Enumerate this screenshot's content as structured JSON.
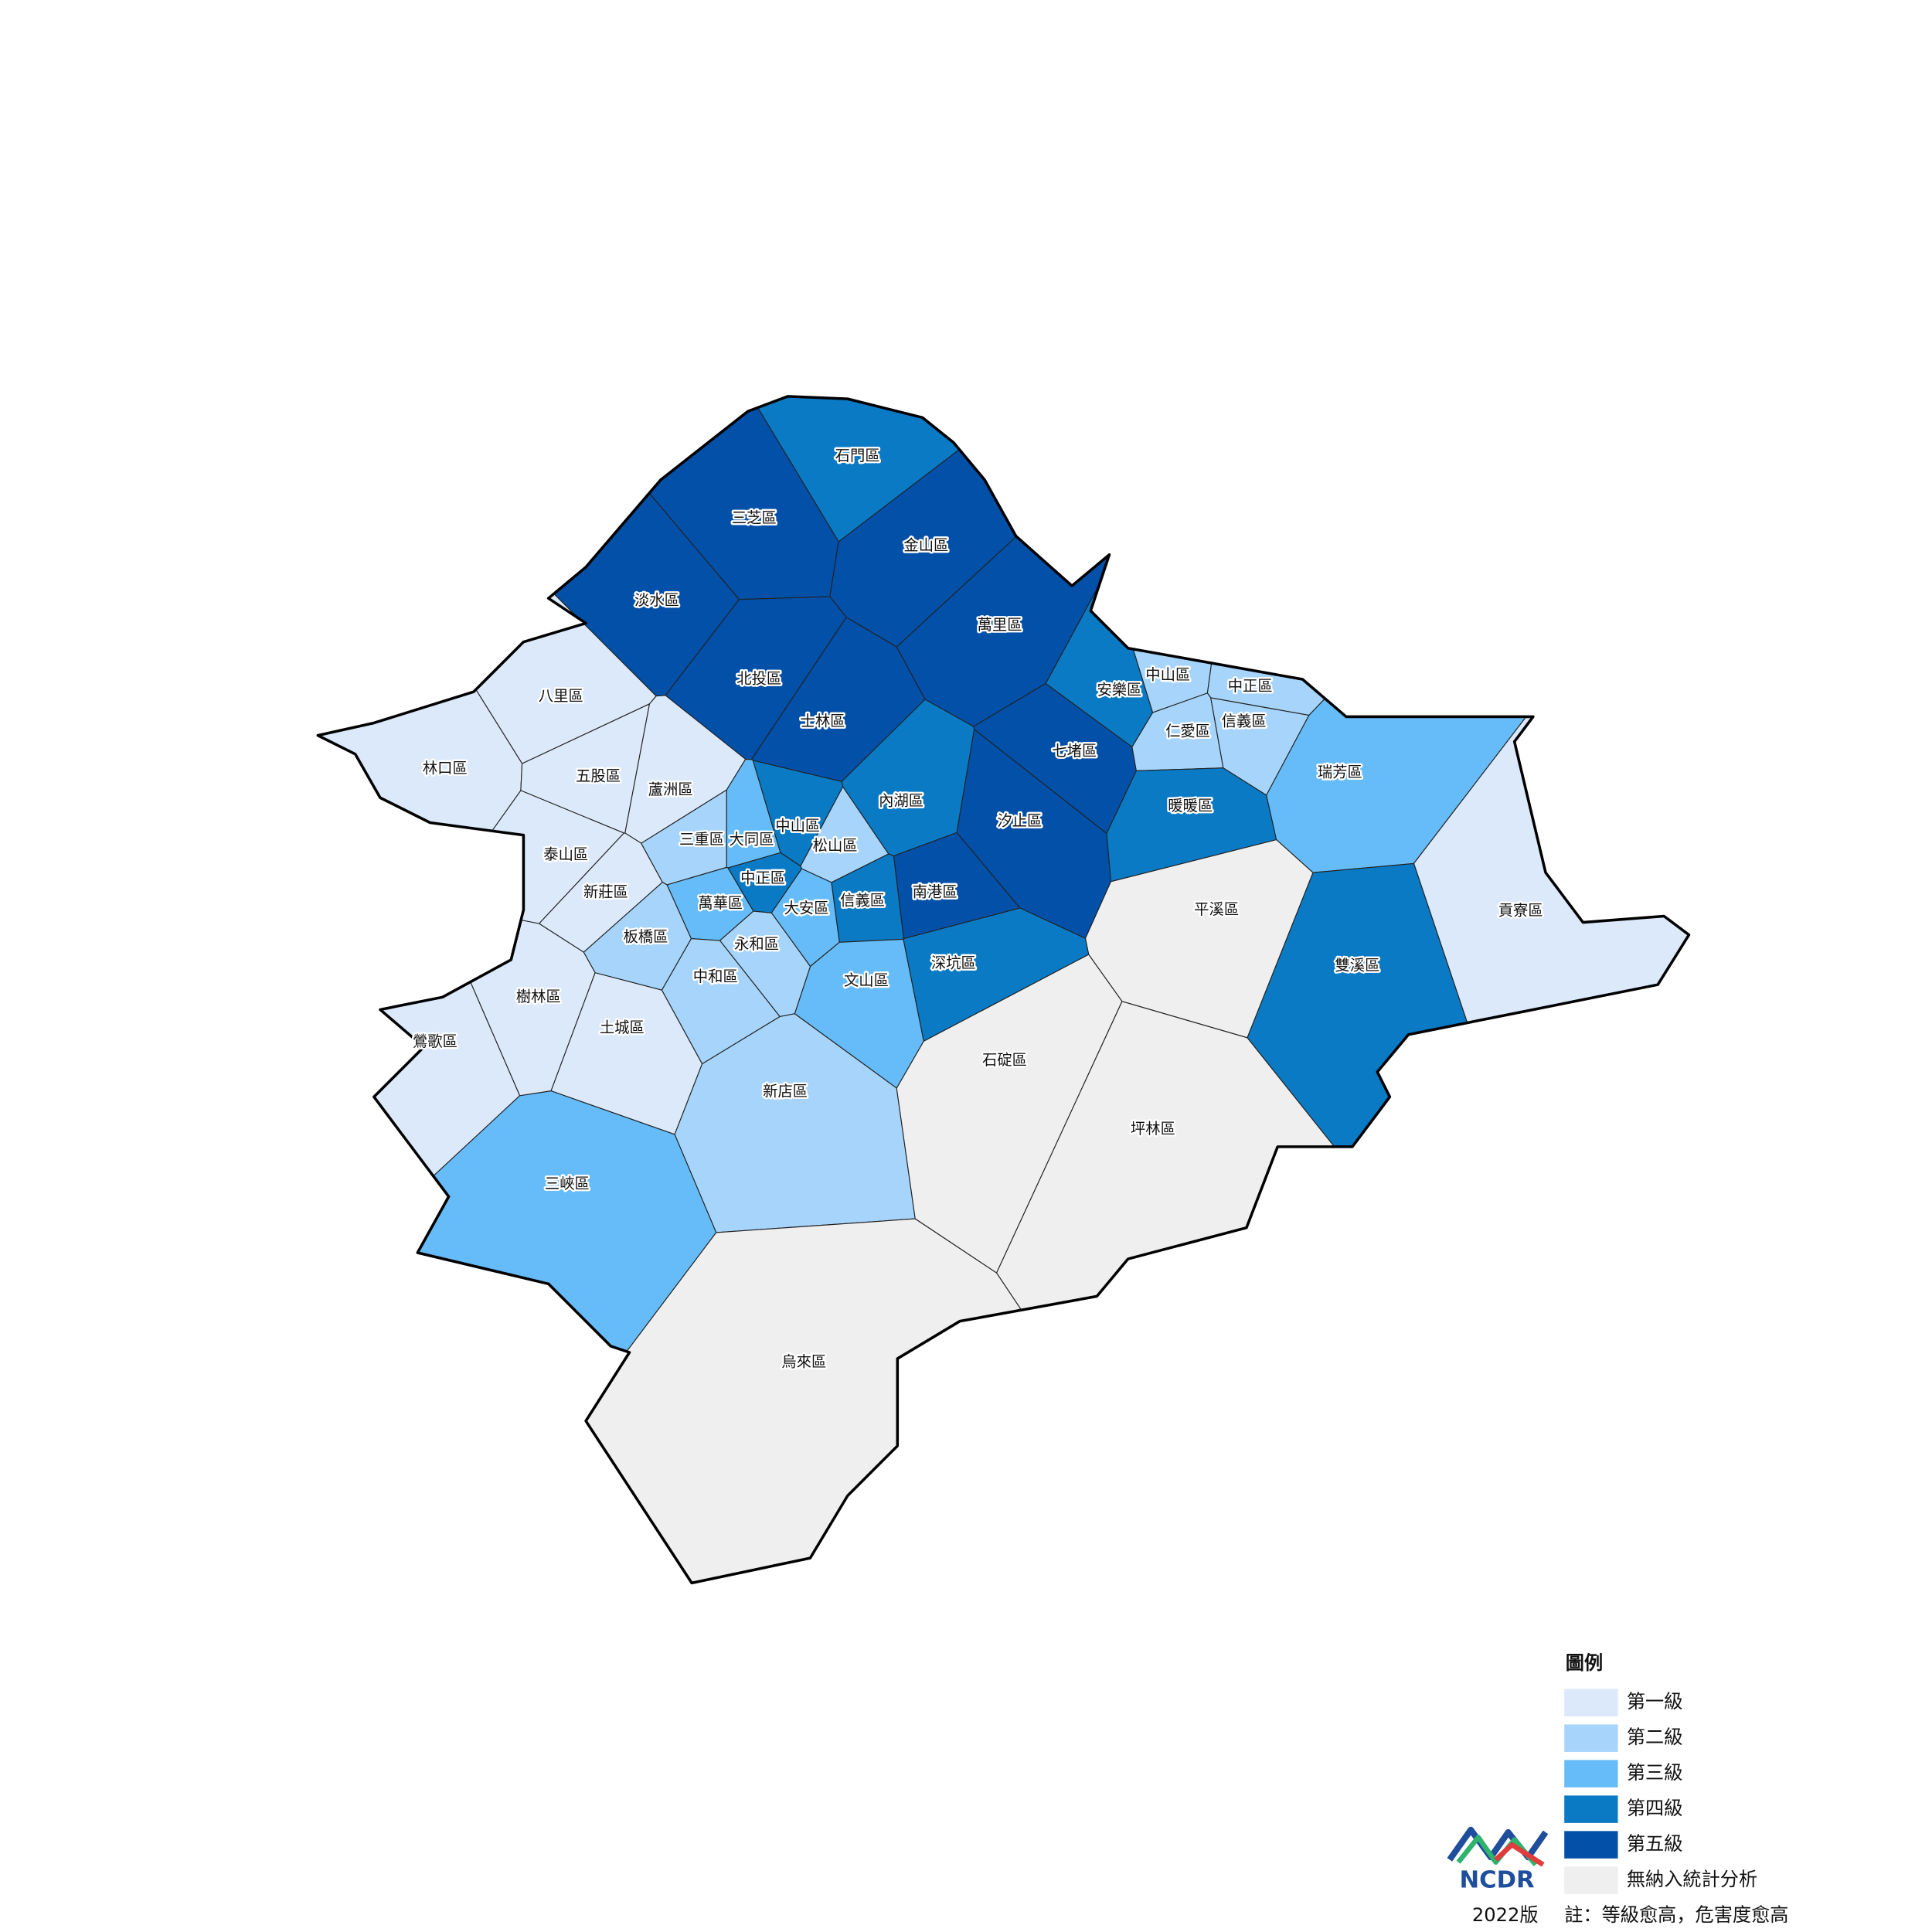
{
  "map": {
    "districts": [
      {
        "name": "石門區",
        "class": 3
      },
      {
        "name": "三芝區",
        "class": 4
      },
      {
        "name": "金山區",
        "class": 4
      },
      {
        "name": "淡水區",
        "class": 4
      },
      {
        "name": "萬里區",
        "class": 4
      },
      {
        "name": "北投區",
        "class": 4
      },
      {
        "name": "士林區",
        "class": 4
      },
      {
        "name": "八里區",
        "class": 0
      },
      {
        "name": "林口區",
        "class": 0
      },
      {
        "name": "五股區",
        "class": 0
      },
      {
        "name": "蘆洲區",
        "class": 0
      },
      {
        "name": "泰山區",
        "class": 0
      },
      {
        "name": "新莊區",
        "class": 0
      },
      {
        "name": "三重區",
        "class": 1
      },
      {
        "name": "大同區",
        "class": 2
      },
      {
        "name": "中山區",
        "class": 3
      },
      {
        "name": "松山區",
        "class": 1
      },
      {
        "name": "內湖區",
        "class": 3
      },
      {
        "name": "中正區",
        "class": 3
      },
      {
        "name": "萬華區",
        "class": 2
      },
      {
        "name": "大安區",
        "class": 2
      },
      {
        "name": "信義區",
        "class": 3
      },
      {
        "name": "南港區",
        "class": 4
      },
      {
        "name": "汐止區",
        "class": 4
      },
      {
        "name": "七堵區",
        "class": 4
      },
      {
        "name": "安樂區",
        "class": 3
      },
      {
        "name": "中山區",
        "class": 1
      },
      {
        "name": "中正區",
        "class": 1
      },
      {
        "name": "仁愛區",
        "class": 1
      },
      {
        "name": "信義區",
        "class": 1
      },
      {
        "name": "暖暖區",
        "class": 3
      },
      {
        "name": "瑞芳區",
        "class": 2
      },
      {
        "name": "貢寮區",
        "class": 0
      },
      {
        "name": "雙溪區",
        "class": 3
      },
      {
        "name": "平溪區",
        "class": 5
      },
      {
        "name": "深坑區",
        "class": 3
      },
      {
        "name": "文山區",
        "class": 2
      },
      {
        "name": "永和區",
        "class": 1
      },
      {
        "name": "中和區",
        "class": 1
      },
      {
        "name": "板橋區",
        "class": 1
      },
      {
        "name": "樹林區",
        "class": 0
      },
      {
        "name": "土城區",
        "class": 0
      },
      {
        "name": "鶯歌區",
        "class": 0
      },
      {
        "name": "新店區",
        "class": 1
      },
      {
        "name": "三峽區",
        "class": 2
      },
      {
        "name": "石碇區",
        "class": 5
      },
      {
        "name": "坪林區",
        "class": 5
      },
      {
        "name": "烏來區",
        "class": 5
      }
    ]
  },
  "legend": {
    "title": "圖例",
    "items": [
      {
        "label": "第一級",
        "color": "#dbe9fb"
      },
      {
        "label": "第二級",
        "color": "#a6d4fa"
      },
      {
        "label": "第三級",
        "color": "#66bcf8"
      },
      {
        "label": "第四級",
        "color": "#0a7ac4"
      },
      {
        "label": "第五級",
        "color": "#0350a8"
      },
      {
        "label": "無納入統計分析",
        "color": "#efefef"
      }
    ]
  },
  "logo": "NCDR",
  "edition": "2022版",
  "note": "註：等級愈高，危害度愈高"
}
